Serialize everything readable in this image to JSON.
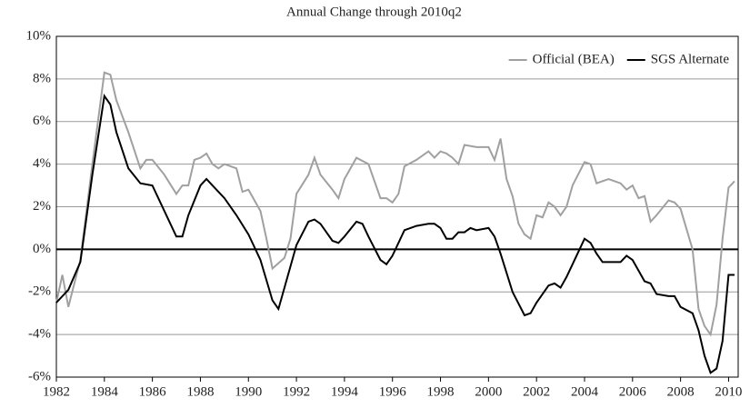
{
  "chart_data": {
    "type": "line",
    "title": "Annual Change through 2010q2",
    "xlim": [
      1982,
      2010.4
    ],
    "xticks": [
      1982,
      1984,
      1986,
      1988,
      1990,
      1992,
      1994,
      1996,
      1998,
      2000,
      2002,
      2004,
      2006,
      2008,
      2010
    ],
    "ylim": [
      -6,
      10
    ],
    "yticks": [
      {
        "value": -6,
        "label": "-6%"
      },
      {
        "value": -4,
        "label": "-4%"
      },
      {
        "value": -2,
        "label": "-2%"
      },
      {
        "value": 0,
        "label": "0%"
      },
      {
        "value": 2,
        "label": "2%"
      },
      {
        "value": 4,
        "label": "4%"
      },
      {
        "value": 6,
        "label": "6%"
      },
      {
        "value": 8,
        "label": "8%"
      },
      {
        "value": 10,
        "label": "10%"
      }
    ],
    "grid": true,
    "legend": "upper right",
    "series": [
      {
        "name": "Official (BEA)",
        "color": "#a0a0a0",
        "x": [
          1982.0,
          1982.25,
          1982.5,
          1983.0,
          1983.5,
          1984.0,
          1984.25,
          1984.5,
          1985.0,
          1985.5,
          1985.75,
          1986.0,
          1986.5,
          1987.0,
          1987.25,
          1987.5,
          1987.75,
          1988.0,
          1988.25,
          1988.5,
          1988.75,
          1989.0,
          1989.5,
          1989.75,
          1990.0,
          1990.5,
          1990.75,
          1991.0,
          1991.5,
          1991.75,
          1992.0,
          1992.5,
          1992.75,
          1993.0,
          1993.5,
          1993.75,
          1994.0,
          1994.5,
          1995.0,
          1995.5,
          1995.75,
          1996.0,
          1996.25,
          1996.5,
          1997.0,
          1997.5,
          1997.75,
          1998.0,
          1998.25,
          1998.5,
          1998.75,
          1999.0,
          1999.5,
          2000.0,
          2000.25,
          2000.5,
          2000.75,
          2001.0,
          2001.25,
          2001.5,
          2001.75,
          2002.0,
          2002.25,
          2002.5,
          2002.75,
          2003.0,
          2003.25,
          2003.5,
          2004.0,
          2004.25,
          2004.5,
          2005.0,
          2005.5,
          2005.75,
          2006.0,
          2006.25,
          2006.5,
          2006.75,
          2007.0,
          2007.5,
          2007.75,
          2008.0,
          2008.5,
          2008.75,
          2009.0,
          2009.25,
          2009.5,
          2009.75,
          2010.0,
          2010.25
        ],
        "values": [
          -2.5,
          -1.2,
          -2.7,
          -0.5,
          4,
          8.3,
          8.2,
          7,
          5.5,
          3.8,
          4.2,
          4.2,
          3.5,
          2.6,
          3.0,
          3.0,
          4.2,
          4.3,
          4.5,
          4.0,
          3.8,
          4.0,
          3.8,
          2.7,
          2.8,
          1.8,
          0.5,
          -0.9,
          -0.4,
          0.5,
          2.6,
          3.5,
          4.3,
          3.5,
          2.8,
          2.4,
          3.3,
          4.3,
          4.0,
          2.4,
          2.4,
          2.2,
          2.6,
          3.9,
          4.2,
          4.6,
          4.3,
          4.6,
          4.5,
          4.3,
          4.0,
          4.9,
          4.8,
          4.8,
          4.2,
          5.2,
          3.3,
          2.5,
          1.2,
          0.7,
          0.5,
          1.6,
          1.5,
          2.2,
          2.0,
          1.6,
          2.0,
          3.0,
          4.1,
          4.0,
          3.1,
          3.3,
          3.1,
          2.8,
          3.0,
          2.4,
          2.5,
          1.3,
          1.6,
          2.3,
          2.2,
          1.9,
          0.0,
          -2.8,
          -3.6,
          -4.0,
          -2.6,
          0.5,
          2.9,
          3.2
        ]
      },
      {
        "name": "SGS Alternate",
        "color": "#000000",
        "x": [
          1982.0,
          1982.5,
          1983.0,
          1983.5,
          1984.0,
          1984.25,
          1984.5,
          1985.0,
          1985.5,
          1986.0,
          1986.5,
          1987.0,
          1987.25,
          1987.5,
          1988.0,
          1988.25,
          1988.5,
          1989.0,
          1989.5,
          1990.0,
          1990.5,
          1991.0,
          1991.25,
          1991.5,
          1992.0,
          1992.5,
          1992.75,
          1993.0,
          1993.5,
          1993.75,
          1994.0,
          1994.5,
          1994.75,
          1995.0,
          1995.5,
          1995.75,
          1996.0,
          1996.5,
          1997.0,
          1997.5,
          1997.75,
          1998.0,
          1998.25,
          1998.5,
          1998.75,
          1999.0,
          1999.25,
          1999.5,
          2000.0,
          2000.25,
          2000.5,
          2001.0,
          2001.5,
          2001.75,
          2002.0,
          2002.5,
          2002.75,
          2003.0,
          2003.25,
          2003.5,
          2004.0,
          2004.25,
          2004.5,
          2004.75,
          2005.0,
          2005.5,
          2005.75,
          2006.0,
          2006.25,
          2006.5,
          2006.75,
          2007.0,
          2007.5,
          2007.75,
          2008.0,
          2008.5,
          2008.75,
          2009.0,
          2009.25,
          2009.5,
          2009.75,
          2010.0,
          2010.25
        ],
        "values": [
          -2.5,
          -1.9,
          -0.6,
          3.5,
          7.2,
          6.8,
          5.5,
          3.8,
          3.1,
          3.0,
          1.8,
          0.6,
          0.6,
          1.6,
          3.0,
          3.3,
          3.0,
          2.4,
          1.6,
          0.7,
          -0.5,
          -2.4,
          -2.8,
          -1.8,
          0.2,
          1.3,
          1.4,
          1.2,
          0.4,
          0.3,
          0.6,
          1.3,
          1.2,
          0.6,
          -0.5,
          -0.7,
          -0.3,
          0.9,
          1.1,
          1.2,
          1.2,
          1.0,
          0.5,
          0.5,
          0.8,
          0.8,
          1.0,
          0.9,
          1.0,
          0.6,
          -0.2,
          -2.0,
          -3.1,
          -3.0,
          -2.5,
          -1.7,
          -1.6,
          -1.8,
          -1.3,
          -0.7,
          0.5,
          0.3,
          -0.2,
          -0.6,
          -0.6,
          -0.6,
          -0.3,
          -0.5,
          -1.0,
          -1.5,
          -1.6,
          -2.1,
          -2.2,
          -2.2,
          -2.7,
          -3.0,
          -3.8,
          -5.0,
          -5.8,
          -5.6,
          -4.3,
          -1.2,
          -1.2
        ]
      }
    ]
  }
}
